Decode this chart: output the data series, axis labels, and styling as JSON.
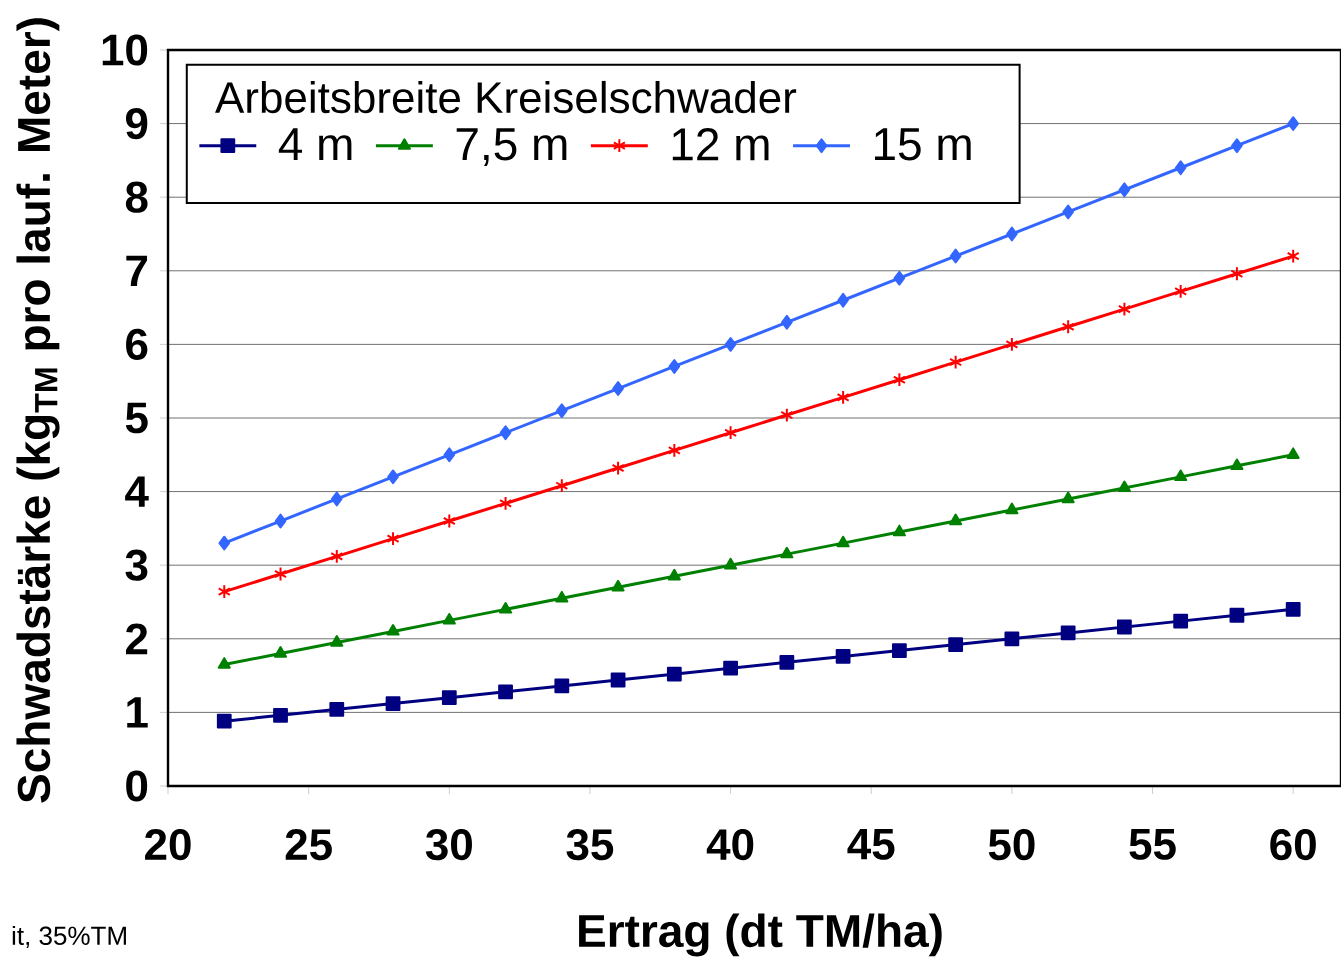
{
  "chart_data": {
    "type": "line",
    "xlabel": "Ertrag (dt TM/ha)",
    "ylabel": "Schwadstärke (kg$_{TM}$ pro lauf. Meter)",
    "legend_title": "Arbeitsbreite Kreiselschwader",
    "annotations": [
      "it, 35%TM"
    ],
    "x": [
      22,
      24,
      26,
      28,
      30,
      32,
      34,
      36,
      38,
      40,
      42,
      44,
      46,
      48,
      50,
      52,
      54,
      56,
      58,
      60
    ],
    "series": [
      {
        "name": "4 m",
        "color": "#000080",
        "marker": "square",
        "values": [
          0.88,
          0.96,
          1.04,
          1.12,
          1.2,
          1.28,
          1.36,
          1.44,
          1.52,
          1.6,
          1.68,
          1.76,
          1.84,
          1.92,
          2.0,
          2.08,
          2.16,
          2.24,
          2.32,
          2.4
        ]
      },
      {
        "name": "7,5 m",
        "color": "#008000",
        "marker": "triangle",
        "values": [
          1.65,
          1.8,
          1.95,
          2.1,
          2.25,
          2.4,
          2.55,
          2.7,
          2.85,
          3.0,
          3.15,
          3.3,
          3.45,
          3.6,
          3.75,
          3.9,
          4.05,
          4.2,
          4.35,
          4.5
        ]
      },
      {
        "name": "12 m",
        "color": "#ff0000",
        "marker": "cross",
        "values": [
          2.64,
          2.88,
          3.12,
          3.36,
          3.6,
          3.84,
          4.08,
          4.32,
          4.56,
          4.8,
          5.04,
          5.28,
          5.52,
          5.76,
          6.0,
          6.24,
          6.48,
          6.72,
          6.96,
          7.2
        ]
      },
      {
        "name": "15 m",
        "color": "#3366ff",
        "marker": "diamond",
        "values": [
          3.3,
          3.6,
          3.9,
          4.2,
          4.5,
          4.8,
          5.1,
          5.4,
          5.7,
          6.0,
          6.3,
          6.6,
          6.9,
          7.2,
          7.5,
          7.8,
          8.1,
          8.4,
          8.7,
          9.0
        ]
      }
    ],
    "xlim": [
      20,
      61.7
    ],
    "ylim": [
      0,
      10
    ],
    "xticks": [
      20,
      25,
      30,
      35,
      40,
      45,
      50,
      55,
      60
    ],
    "yticks": [
      0,
      1,
      2,
      3,
      4,
      5,
      6,
      7,
      8,
      9,
      10
    ],
    "grid": "y",
    "legend": "top left",
    "line_style": "solid"
  }
}
